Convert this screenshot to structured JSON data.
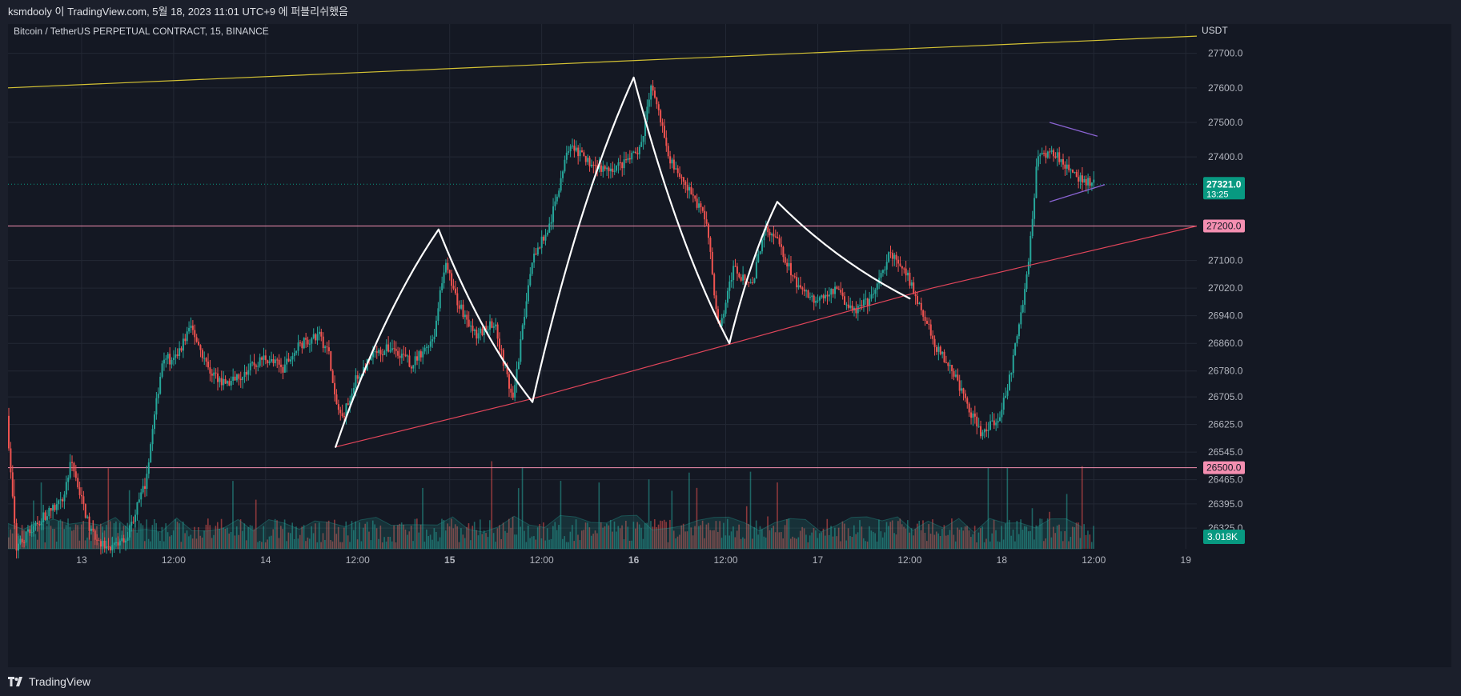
{
  "header": {
    "title": "ksmdooly 이 TradingView.com, 5월 18, 2023 11:01 UTC+9 에 퍼블리쉬했음"
  },
  "footer": {
    "brand": "TradingView"
  },
  "chart_data": {
    "type": "candlestick",
    "title": "Bitcoin / TetherUS PERPETUAL CONTRACT, 15, BINANCE",
    "currency": "USDT",
    "x_tick_labels": [
      "13",
      "12:00",
      "14",
      "12:00",
      "15",
      "12:00",
      "16",
      "12:00",
      "17",
      "12:00",
      "18",
      "12:00",
      "19"
    ],
    "y_tick_labels": [
      "27700.0",
      "27600.0",
      "27500.0",
      "27400.0",
      "27100.0",
      "27020.0",
      "26940.0",
      "26860.0",
      "26780.0",
      "26705.0",
      "26625.0",
      "26545.0",
      "26465.0",
      "26395.0",
      "26325.0"
    ],
    "current_price": {
      "value": "27321.0",
      "countdown": "13:25"
    },
    "horizontal_levels": [
      {
        "value": "27200.0"
      },
      {
        "value": "26500.0"
      }
    ],
    "volume_label": "3.018K",
    "x_range_days": [
      12.6,
      19.06
    ],
    "y_range": [
      26265,
      27785
    ],
    "price_path": [
      [
        12.6,
        26650
      ],
      [
        12.65,
        26270
      ],
      [
        12.8,
        26360
      ],
      [
        12.9,
        26400
      ],
      [
        12.95,
        26520
      ],
      [
        13.05,
        26320
      ],
      [
        13.15,
        26260
      ],
      [
        13.25,
        26300
      ],
      [
        13.35,
        26450
      ],
      [
        13.45,
        26830
      ],
      [
        13.5,
        26800
      ],
      [
        13.6,
        26910
      ],
      [
        13.7,
        26780
      ],
      [
        13.8,
        26740
      ],
      [
        13.9,
        26780
      ],
      [
        14.0,
        26820
      ],
      [
        14.1,
        26790
      ],
      [
        14.2,
        26860
      ],
      [
        14.3,
        26880
      ],
      [
        14.35,
        26830
      ],
      [
        14.38,
        26700
      ],
      [
        14.42,
        26640
      ],
      [
        14.5,
        26760
      ],
      [
        14.6,
        26830
      ],
      [
        14.7,
        26850
      ],
      [
        14.8,
        26800
      ],
      [
        14.92,
        26880
      ],
      [
        14.98,
        27090
      ],
      [
        15.05,
        26980
      ],
      [
        15.15,
        26880
      ],
      [
        15.25,
        26920
      ],
      [
        15.35,
        26690
      ],
      [
        15.45,
        27100
      ],
      [
        15.55,
        27200
      ],
      [
        15.65,
        27430
      ],
      [
        15.75,
        27390
      ],
      [
        15.85,
        27360
      ],
      [
        15.95,
        27380
      ],
      [
        16.0,
        27400
      ],
      [
        16.05,
        27430
      ],
      [
        16.1,
        27620
      ],
      [
        16.2,
        27400
      ],
      [
        16.3,
        27310
      ],
      [
        16.4,
        27220
      ],
      [
        16.47,
        26890
      ],
      [
        16.55,
        27080
      ],
      [
        16.65,
        27020
      ],
      [
        16.72,
        27210
      ],
      [
        16.8,
        27140
      ],
      [
        16.9,
        27020
      ],
      [
        17.0,
        26980
      ],
      [
        17.1,
        27020
      ],
      [
        17.2,
        26950
      ],
      [
        17.3,
        26990
      ],
      [
        17.4,
        27120
      ],
      [
        17.5,
        27050
      ],
      [
        17.55,
        26980
      ],
      [
        17.65,
        26850
      ],
      [
        17.75,
        26770
      ],
      [
        17.82,
        26680
      ],
      [
        17.9,
        26590
      ],
      [
        18.0,
        26660
      ],
      [
        18.05,
        26760
      ],
      [
        18.15,
        27080
      ],
      [
        18.2,
        27400
      ],
      [
        18.3,
        27410
      ],
      [
        18.4,
        27350
      ],
      [
        18.45,
        27330
      ],
      [
        18.5,
        27321
      ]
    ],
    "annotations": {
      "resistance_line_yellow": [
        [
          12.6,
          27600
        ],
        [
          19.06,
          27750
        ]
      ],
      "support_trendline_red": [
        [
          14.38,
          26560
        ],
        [
          15.45,
          26700
        ],
        [
          17.62,
          27020
        ],
        [
          19.06,
          27200
        ]
      ],
      "white_pattern_path": [
        [
          14.38,
          26560
        ],
        [
          14.94,
          27190
        ],
        [
          15.45,
          26690
        ],
        [
          16.0,
          27630
        ],
        [
          16.52,
          26860
        ],
        [
          16.78,
          27270
        ],
        [
          17.5,
          26990
        ]
      ],
      "triangle_upper": [
        [
          18.26,
          27500
        ],
        [
          18.52,
          27460
        ]
      ],
      "triangle_lower": [
        [
          18.26,
          27270
        ],
        [
          18.56,
          27320
        ]
      ],
      "triangle_apex_lines": "purple"
    },
    "colors": {
      "background": "#141823",
      "up": "#26a69a",
      "down": "#ef5350",
      "level_lines": "#f48fb1",
      "yellow_line": "#d4c234",
      "trendline": "#e0455a",
      "pattern": "#ffffff",
      "triangle": "#8a63d2",
      "price_badge": "#089981",
      "level_badge": "#f48fb1"
    },
    "grid": true
  }
}
